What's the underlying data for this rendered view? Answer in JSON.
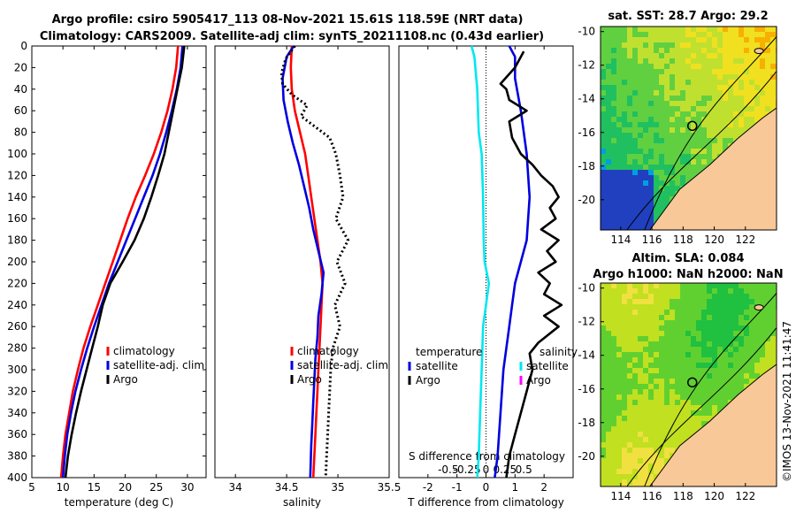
{
  "header": {
    "line1": "Argo profile: csiro 5905417_113 08-Nov-2021 15.61S 118.59E (NRT data)",
    "line2": "Climatology: CARS2009. Satellite-adj clim: synTS_20211108.nc (0.43d earlier)"
  },
  "colors": {
    "red": "#ff0000",
    "blue": "#0000e0",
    "black": "#000000",
    "cyan": "#00e8f0",
    "magenta": "#ff00ff"
  },
  "chart_data": [
    {
      "type": "line",
      "id": "temperature",
      "xlabel": "temperature (deg C)",
      "ylabel": "",
      "xlim": [
        5,
        33
      ],
      "ylim": [
        0,
        400
      ],
      "xticks": [
        5,
        10,
        15,
        20,
        25,
        30
      ],
      "yticks": [
        0,
        20,
        40,
        60,
        80,
        100,
        120,
        140,
        160,
        180,
        200,
        220,
        240,
        260,
        280,
        300,
        320,
        340,
        360,
        380,
        400
      ],
      "legend": [
        "climatology",
        "satellite-adj. clim",
        "Argo"
      ],
      "series": [
        {
          "name": "climatology",
          "color": "red",
          "dash": false,
          "points": [
            [
              28.5,
              0
            ],
            [
              28.2,
              20
            ],
            [
              27.6,
              40
            ],
            [
              26.8,
              60
            ],
            [
              25.8,
              80
            ],
            [
              24.6,
              100
            ],
            [
              23.2,
              120
            ],
            [
              21.7,
              140
            ],
            [
              20.4,
              160
            ],
            [
              19.2,
              180
            ],
            [
              18.0,
              200
            ],
            [
              16.8,
              220
            ],
            [
              15.6,
              240
            ],
            [
              14.4,
              260
            ],
            [
              13.3,
              280
            ],
            [
              12.4,
              300
            ],
            [
              11.6,
              320
            ],
            [
              11.0,
              340
            ],
            [
              10.4,
              360
            ],
            [
              10.0,
              380
            ],
            [
              9.7,
              400
            ]
          ]
        },
        {
          "name": "satellite-adj. clim",
          "color": "blue",
          "dash": false,
          "points": [
            [
              29.2,
              0
            ],
            [
              28.9,
              20
            ],
            [
              28.3,
              40
            ],
            [
              27.5,
              60
            ],
            [
              26.6,
              80
            ],
            [
              25.6,
              100
            ],
            [
              24.4,
              120
            ],
            [
              23.0,
              140
            ],
            [
              21.6,
              160
            ],
            [
              20.2,
              180
            ],
            [
              18.8,
              200
            ],
            [
              17.4,
              220
            ],
            [
              16.2,
              240
            ],
            [
              15.0,
              260
            ],
            [
              13.9,
              280
            ],
            [
              12.9,
              300
            ],
            [
              12.0,
              320
            ],
            [
              11.3,
              340
            ],
            [
              10.7,
              360
            ],
            [
              10.3,
              380
            ],
            [
              10.0,
              400
            ]
          ]
        },
        {
          "name": "Argo",
          "color": "black",
          "dash": false,
          "points": [
            [
              29.5,
              0
            ],
            [
              29.1,
              20
            ],
            [
              28.4,
              40
            ],
            [
              27.7,
              60
            ],
            [
              27.0,
              80
            ],
            [
              26.3,
              100
            ],
            [
              25.3,
              120
            ],
            [
              24.2,
              140
            ],
            [
              23.0,
              160
            ],
            [
              21.5,
              180
            ],
            [
              19.6,
              200
            ],
            [
              17.6,
              220
            ],
            [
              16.4,
              240
            ],
            [
              15.6,
              260
            ],
            [
              14.7,
              280
            ],
            [
              13.8,
              300
            ],
            [
              12.9,
              320
            ],
            [
              12.1,
              340
            ],
            [
              11.4,
              360
            ],
            [
              10.8,
              380
            ],
            [
              10.4,
              400
            ]
          ]
        }
      ]
    },
    {
      "type": "line",
      "id": "salinity",
      "xlabel": "salinity",
      "xlim": [
        33.8,
        35.5
      ],
      "ylim": [
        0,
        400
      ],
      "xticks": [
        34,
        34.5,
        35,
        35.5
      ],
      "xticklabels": [
        "34",
        "34.5",
        "35",
        "35.5"
      ],
      "legend": [
        "climatology",
        "satellite-adj. clim",
        "Argo"
      ],
      "series": [
        {
          "name": "climatology",
          "color": "red",
          "dash": false,
          "points": [
            [
              34.55,
              0
            ],
            [
              34.54,
              20
            ],
            [
              34.55,
              40
            ],
            [
              34.58,
              60
            ],
            [
              34.63,
              80
            ],
            [
              34.68,
              100
            ],
            [
              34.71,
              120
            ],
            [
              34.74,
              140
            ],
            [
              34.77,
              160
            ],
            [
              34.8,
              180
            ],
            [
              34.83,
              200
            ],
            [
              34.85,
              220
            ],
            [
              34.84,
              240
            ],
            [
              34.83,
              260
            ],
            [
              34.82,
              280
            ],
            [
              34.81,
              300
            ],
            [
              34.8,
              320
            ],
            [
              34.79,
              340
            ],
            [
              34.78,
              360
            ],
            [
              34.77,
              380
            ],
            [
              34.76,
              400
            ]
          ]
        },
        {
          "name": "satellite-adj. clim",
          "color": "blue",
          "dash": false,
          "points": [
            [
              34.57,
              0
            ],
            [
              34.5,
              10
            ],
            [
              34.46,
              30
            ],
            [
              34.47,
              50
            ],
            [
              34.51,
              70
            ],
            [
              34.56,
              90
            ],
            [
              34.62,
              110
            ],
            [
              34.67,
              130
            ],
            [
              34.72,
              150
            ],
            [
              34.76,
              170
            ],
            [
              34.81,
              190
            ],
            [
              34.86,
              210
            ],
            [
              34.84,
              230
            ],
            [
              34.81,
              250
            ],
            [
              34.8,
              270
            ],
            [
              34.78,
              290
            ],
            [
              34.77,
              310
            ],
            [
              34.76,
              330
            ],
            [
              34.75,
              350
            ],
            [
              34.74,
              370
            ],
            [
              34.73,
              400
            ]
          ]
        },
        {
          "name": "Argo",
          "color": "black",
          "dash": true,
          "points": [
            [
              34.58,
              0
            ],
            [
              34.49,
              12
            ],
            [
              34.45,
              25
            ],
            [
              34.46,
              35
            ],
            [
              34.55,
              45
            ],
            [
              34.7,
              55
            ],
            [
              34.64,
              65
            ],
            [
              34.78,
              75
            ],
            [
              34.92,
              85
            ],
            [
              34.98,
              100
            ],
            [
              35.02,
              120
            ],
            [
              35.05,
              140
            ],
            [
              34.98,
              160
            ],
            [
              35.1,
              180
            ],
            [
              34.99,
              200
            ],
            [
              35.07,
              220
            ],
            [
              34.97,
              240
            ],
            [
              35.02,
              260
            ],
            [
              34.95,
              280
            ],
            [
              34.93,
              300
            ],
            [
              34.92,
              320
            ],
            [
              34.91,
              340
            ],
            [
              34.9,
              360
            ],
            [
              34.89,
              380
            ],
            [
              34.88,
              400
            ]
          ]
        }
      ]
    },
    {
      "type": "line",
      "id": "difference",
      "xlabel": "T difference from climatology",
      "x2label": "S difference from climatology",
      "xlim": [
        -3,
        3
      ],
      "ylim": [
        0,
        400
      ],
      "xticks": [
        -2,
        -1,
        0,
        1,
        2
      ],
      "xticklabels": [
        "-2",
        "-1",
        "0",
        "1",
        "2"
      ],
      "x2ticklabels": [
        "-0.5",
        "-0.25",
        "0",
        "0.25",
        "0.5"
      ],
      "legend_temperature": {
        "title": "temperature",
        "items": [
          "satellite",
          "Argo"
        ]
      },
      "legend_salinity": {
        "title": "salinity",
        "items": [
          "satellite",
          "Argo"
        ]
      },
      "series": [
        {
          "name": "S satellite",
          "color": "cyan",
          "dash": false,
          "points": [
            [
              -0.5,
              0
            ],
            [
              -0.4,
              10
            ],
            [
              -0.3,
              40
            ],
            [
              -0.25,
              80
            ],
            [
              -0.15,
              100
            ],
            [
              -0.1,
              140
            ],
            [
              -0.08,
              180
            ],
            [
              -0.05,
              200
            ],
            [
              0.1,
              220
            ],
            [
              0.0,
              240
            ],
            [
              -0.1,
              260
            ],
            [
              -0.15,
              300
            ],
            [
              -0.2,
              340
            ],
            [
              -0.25,
              380
            ],
            [
              -0.3,
              400
            ]
          ]
        },
        {
          "name": "T satellite",
          "color": "blue",
          "dash": false,
          "points": [
            [
              0.8,
              0
            ],
            [
              1.0,
              10
            ],
            [
              1.0,
              30
            ],
            [
              1.2,
              60
            ],
            [
              1.4,
              100
            ],
            [
              1.5,
              140
            ],
            [
              1.4,
              180
            ],
            [
              1.2,
              200
            ],
            [
              1.0,
              220
            ],
            [
              0.9,
              240
            ],
            [
              0.8,
              260
            ],
            [
              0.6,
              300
            ],
            [
              0.5,
              340
            ],
            [
              0.4,
              380
            ],
            [
              0.3,
              400
            ]
          ]
        },
        {
          "name": "T Argo",
          "color": "black",
          "dash": false,
          "points": [
            [
              1.3,
              5
            ],
            [
              1.0,
              20
            ],
            [
              0.5,
              35
            ],
            [
              0.7,
              40
            ],
            [
              0.8,
              50
            ],
            [
              1.4,
              60
            ],
            [
              0.8,
              70
            ],
            [
              0.9,
              85
            ],
            [
              1.2,
              100
            ],
            [
              1.6,
              110
            ],
            [
              1.9,
              120
            ],
            [
              2.3,
              130
            ],
            [
              2.5,
              140
            ],
            [
              2.2,
              150
            ],
            [
              2.4,
              160
            ],
            [
              1.9,
              170
            ],
            [
              2.5,
              180
            ],
            [
              2.1,
              190
            ],
            [
              2.4,
              200
            ],
            [
              1.8,
              210
            ],
            [
              2.2,
              220
            ],
            [
              2.0,
              230
            ],
            [
              2.6,
              240
            ],
            [
              2.0,
              250
            ],
            [
              2.5,
              260
            ],
            [
              1.8,
              275
            ],
            [
              1.5,
              285
            ],
            [
              1.6,
              300
            ],
            [
              1.4,
              320
            ],
            [
              1.2,
              340
            ],
            [
              1.0,
              360
            ],
            [
              0.8,
              380
            ],
            [
              0.7,
              400
            ]
          ]
        }
      ]
    }
  ],
  "maps": [
    {
      "id": "sst",
      "title": "sat. SST: 28.7 Argo: 29.2",
      "subtitle": "",
      "xticks": [
        "114",
        "116",
        "118",
        "120",
        "122"
      ],
      "yticks": [
        "-10",
        "-12",
        "-14",
        "-16",
        "-18",
        "-20"
      ],
      "palette": [
        "#2040c0",
        "#00a0e0",
        "#20c060",
        "#60d040",
        "#c0e030",
        "#f0e020",
        "#f8b000"
      ]
    },
    {
      "id": "sla",
      "title": "Altim. SLA: 0.084",
      "subtitle": "Argo h1000: NaN h2000: NaN",
      "xticks": [
        "114",
        "116",
        "118",
        "120",
        "122"
      ],
      "yticks": [
        "-10",
        "-12",
        "-14",
        "-16",
        "-18",
        "-20"
      ],
      "palette": [
        "#20c040",
        "#60d030",
        "#c0e020",
        "#f0e040"
      ]
    }
  ],
  "stamp": "©IMOS 13-Nov-2021 11:41:47"
}
